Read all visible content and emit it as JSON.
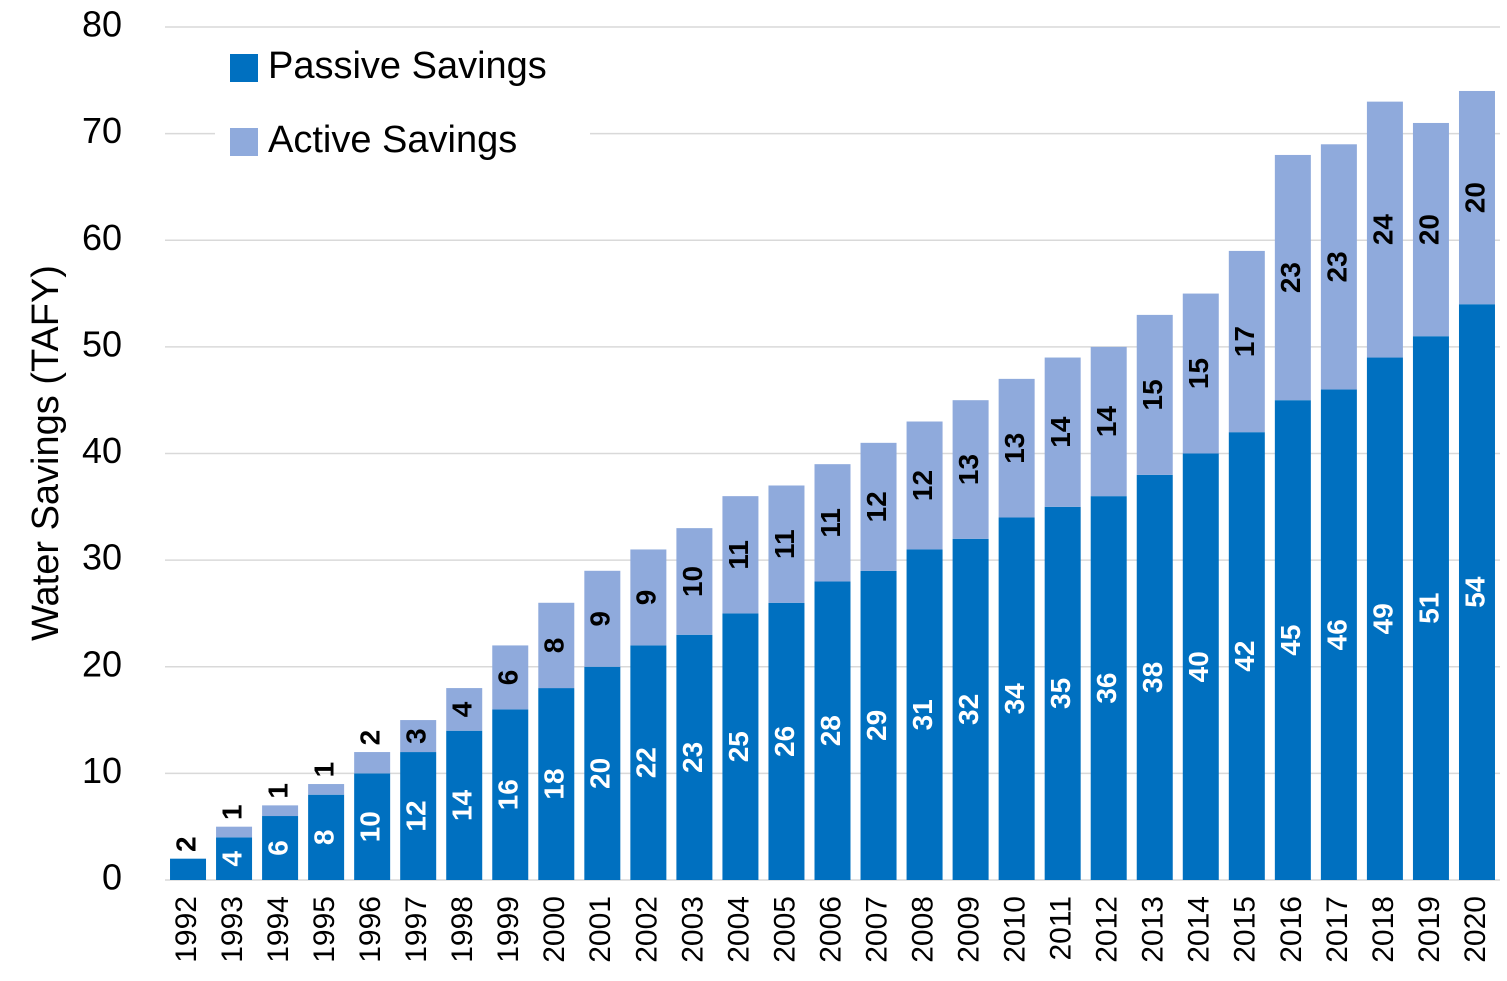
{
  "chart_data": {
    "type": "stacked_bar",
    "y_label": "Water Savings (TAFY)",
    "categories": [
      "1992",
      "1993",
      "1994",
      "1995",
      "1996",
      "1997",
      "1998",
      "1999",
      "2000",
      "2001",
      "2002",
      "2003",
      "2004",
      "2005",
      "2006",
      "2007",
      "2008",
      "2009",
      "2010",
      "2011",
      "2012",
      "2013",
      "2014",
      "2015",
      "2016",
      "2017",
      "2018",
      "2019",
      "2020"
    ],
    "series": [
      {
        "name": "Passive Savings",
        "color": "#0070c0",
        "values": [
          2,
          4,
          6,
          8,
          10,
          12,
          14,
          16,
          18,
          20,
          22,
          23,
          25,
          26,
          28,
          29,
          31,
          32,
          34,
          35,
          36,
          38,
          40,
          42,
          45,
          46,
          49,
          51,
          54
        ]
      },
      {
        "name": "Active Savings",
        "color": "#8faadc",
        "values": [
          null,
          1,
          1,
          1,
          2,
          3,
          4,
          6,
          8,
          9,
          9,
          10,
          11,
          11,
          11,
          12,
          12,
          13,
          13,
          14,
          14,
          15,
          15,
          17,
          23,
          23,
          24,
          20,
          20
        ]
      }
    ],
    "ylim": [
      0,
      80
    ],
    "yticks": [
      0,
      10,
      20,
      30,
      40,
      50,
      60,
      70,
      80
    ],
    "grid": true,
    "legend": "top-left"
  }
}
